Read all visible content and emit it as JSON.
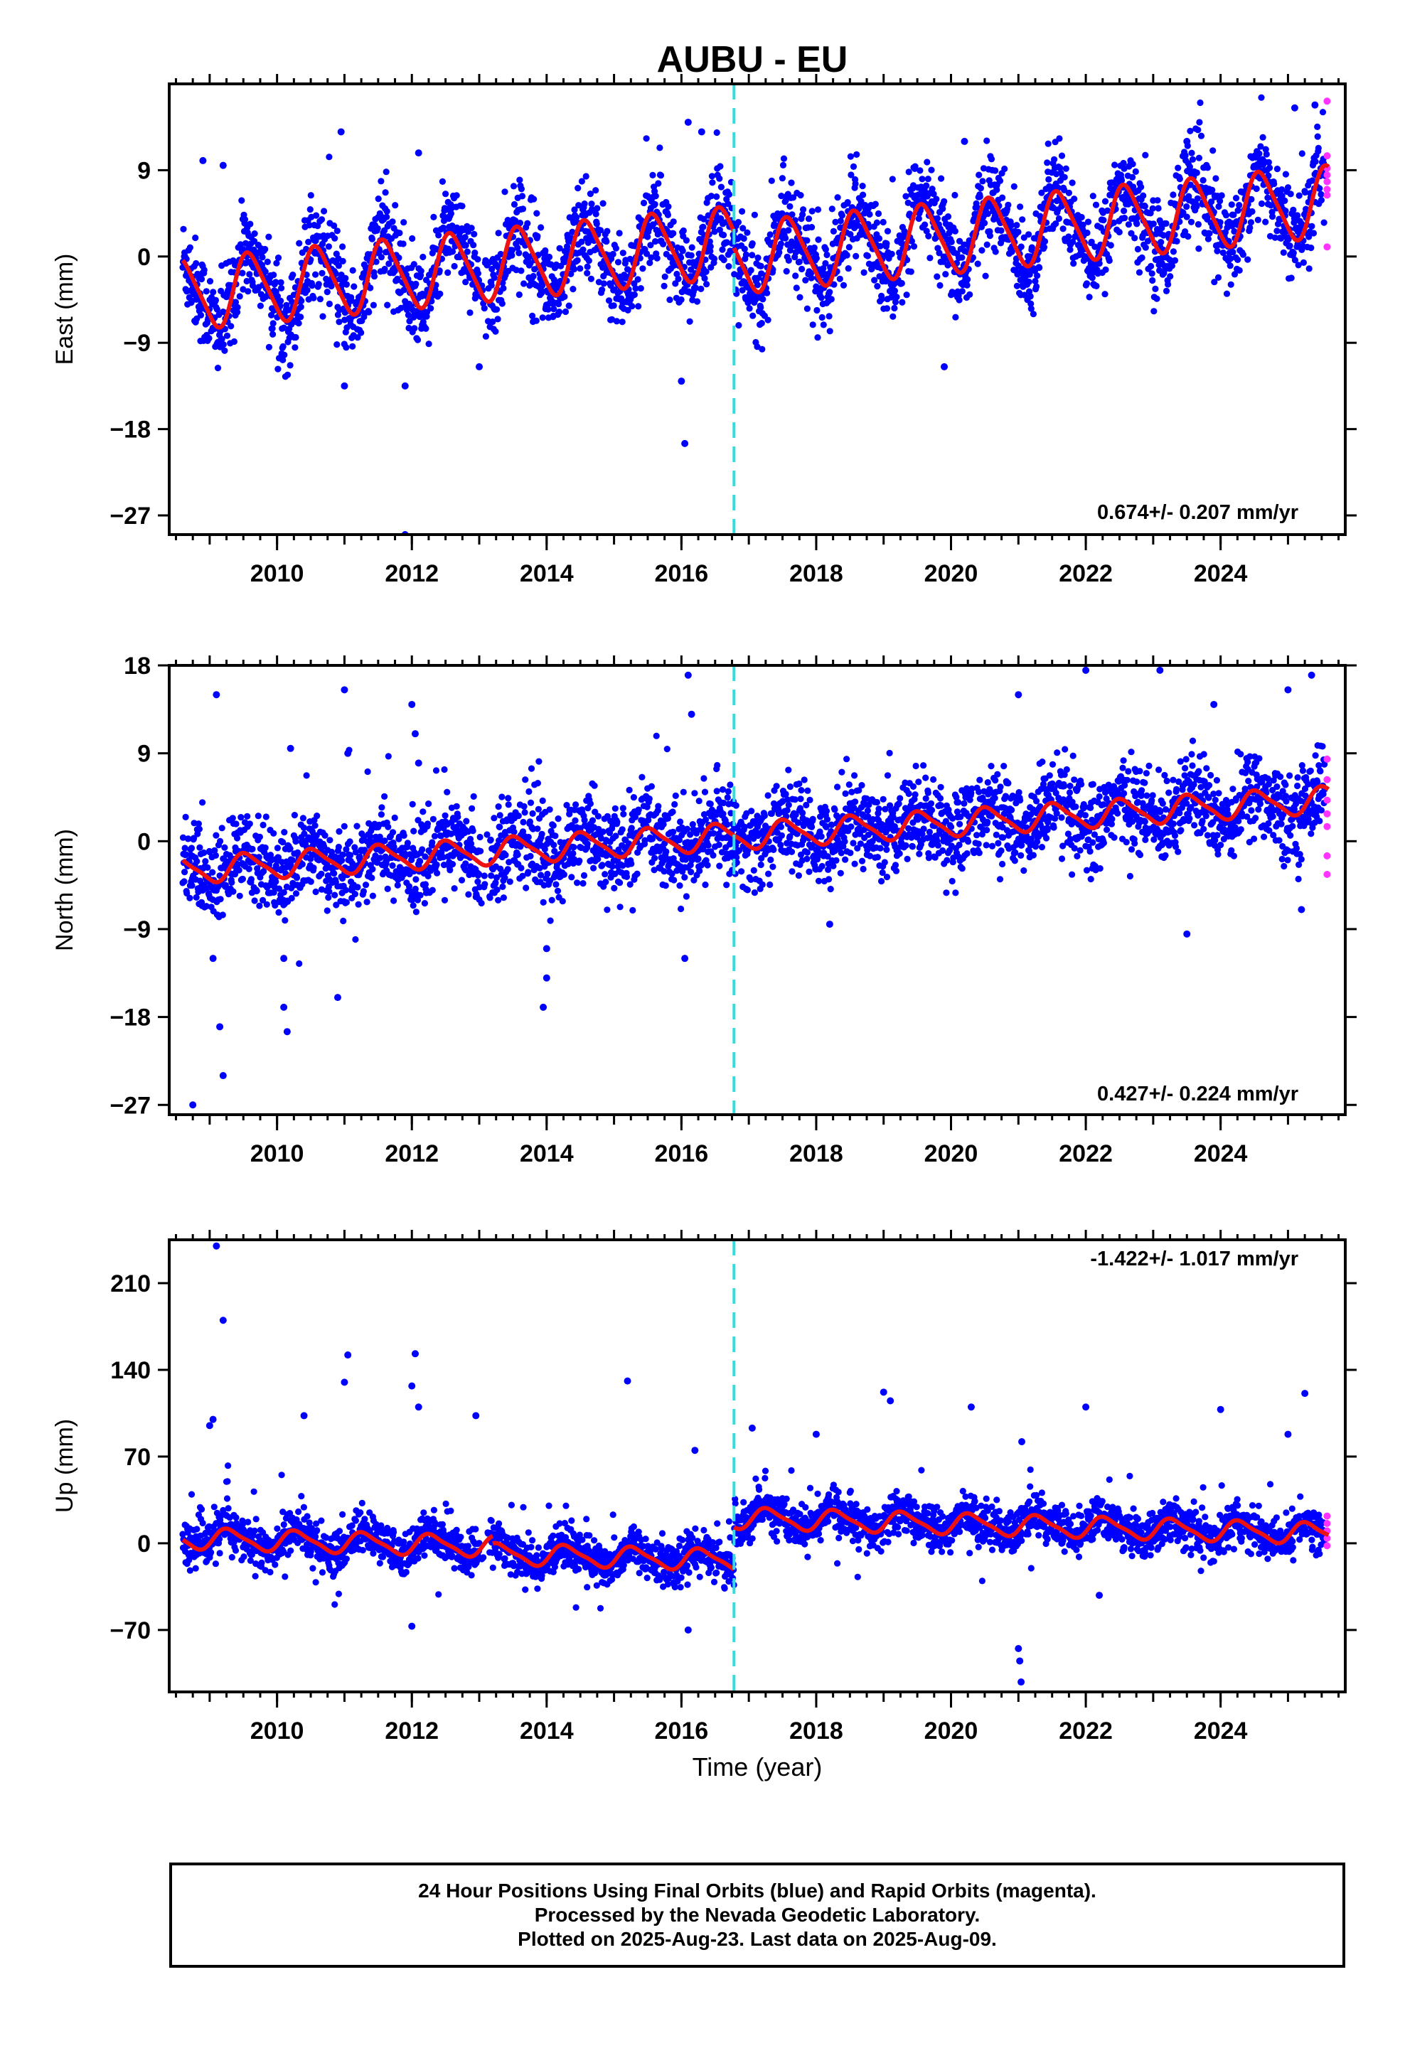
{
  "title": "AUBU - EU",
  "colors": {
    "final_points": "#0000ff",
    "rapid_points": "#ff33ff",
    "model_line": "#ee1111",
    "event_line": "#33dddd",
    "axes": "#000000"
  },
  "chart_data": [
    {
      "type": "scatter",
      "name": "east",
      "ylabel": "East (mm)",
      "ylim": [
        -29,
        18
      ],
      "yticks": [
        9,
        0,
        -9,
        -18,
        -27
      ],
      "ytick_labels": [
        "9",
        "0",
        "−9",
        "−18",
        "−27"
      ],
      "xlim": [
        2008.4,
        2025.85
      ],
      "xticks": [
        2010,
        2012,
        2014,
        2016,
        2018,
        2020,
        2022,
        2024
      ],
      "xtick_labels": [
        "2010",
        "2012",
        "2014",
        "2016",
        "2018",
        "2020",
        "2022",
        "2024"
      ],
      "rate": "0.674+/- 0.207 mm/yr",
      "event_x": 2016.78,
      "model": {
        "segments": [
          {
            "start": 2008.6,
            "end": 2016.78,
            "offset": -4.0,
            "slope": 0.674
          },
          {
            "start": 2016.78,
            "end": 2025.6,
            "offset": -5.7,
            "slope": 0.674
          }
        ],
        "annual_amp": 3.6,
        "semiannual_amp": 0.6,
        "phase": 0.35
      },
      "scatter": {
        "noise": 2.4,
        "outlier_rate": 0.01,
        "outlier_spread": 9
      },
      "outliers": [
        {
          "x": 2008.9,
          "y": 10
        },
        {
          "x": 2009.2,
          "y": 9.5
        },
        {
          "x": 2010.95,
          "y": 13
        },
        {
          "x": 2011.0,
          "y": -13.5
        },
        {
          "x": 2011.9,
          "y": -13.5
        },
        {
          "x": 2012.1,
          "y": 10.8
        },
        {
          "x": 2011.9,
          "y": -29
        },
        {
          "x": 2013.0,
          "y": -11.5
        },
        {
          "x": 2016.0,
          "y": -13
        },
        {
          "x": 2016.05,
          "y": -19.5
        },
        {
          "x": 2016.1,
          "y": 14
        },
        {
          "x": 2016.3,
          "y": 13
        },
        {
          "x": 2020.2,
          "y": 12
        },
        {
          "x": 2019.9,
          "y": -11.5
        },
        {
          "x": 2023.5,
          "y": 12
        },
        {
          "x": 2025.1,
          "y": 15.5
        },
        {
          "x": 2025.4,
          "y": 15.8
        }
      ],
      "rapid": [
        {
          "x": 2025.58,
          "y": 16.2
        },
        {
          "x": 2025.58,
          "y": 10.5
        },
        {
          "x": 2025.58,
          "y": 9.2
        },
        {
          "x": 2025.58,
          "y": 8.5
        },
        {
          "x": 2025.58,
          "y": 7.8
        },
        {
          "x": 2025.58,
          "y": 7.0
        },
        {
          "x": 2025.58,
          "y": 6.4
        },
        {
          "x": 2025.58,
          "y": 1.0
        }
      ]
    },
    {
      "type": "scatter",
      "name": "north",
      "ylabel": "North (mm)",
      "ylim": [
        -28,
        18
      ],
      "yticks": [
        18,
        9,
        0,
        -9,
        -18,
        -27
      ],
      "ytick_labels": [
        "18",
        "9",
        "0",
        "−9",
        "−18",
        "−27"
      ],
      "xlim": [
        2008.4,
        2025.85
      ],
      "xticks": [
        2010,
        2012,
        2014,
        2016,
        2018,
        2020,
        2022,
        2024
      ],
      "xtick_labels": [
        "2010",
        "2012",
        "2014",
        "2016",
        "2018",
        "2020",
        "2022",
        "2024"
      ],
      "rate": "0.427+/- 0.224 mm/yr",
      "event_x": 2016.78,
      "model": {
        "segments": [
          {
            "start": 2008.6,
            "end": 2016.78,
            "offset": -3.0,
            "slope": 0.427
          },
          {
            "start": 2016.78,
            "end": 2025.6,
            "offset": -3.0,
            "slope": 0.427
          }
        ],
        "annual_amp": 1.3,
        "semiannual_amp": 0.3,
        "phase": 0.3
      },
      "scatter": {
        "noise": 2.2,
        "outlier_rate": 0.012,
        "outlier_spread": 10
      },
      "outliers": [
        {
          "x": 2008.75,
          "y": -27
        },
        {
          "x": 2009.1,
          "y": 15
        },
        {
          "x": 2009.15,
          "y": -19
        },
        {
          "x": 2009.2,
          "y": -24
        },
        {
          "x": 2009.05,
          "y": -12
        },
        {
          "x": 2010.1,
          "y": -17
        },
        {
          "x": 2010.15,
          "y": -19.5
        },
        {
          "x": 2010.1,
          "y": -12
        },
        {
          "x": 2010.2,
          "y": 9.5
        },
        {
          "x": 2010.9,
          "y": -16
        },
        {
          "x": 2011.0,
          "y": 15.5
        },
        {
          "x": 2011.05,
          "y": 9
        },
        {
          "x": 2012.0,
          "y": 14
        },
        {
          "x": 2012.05,
          "y": 11
        },
        {
          "x": 2012.1,
          "y": 8
        },
        {
          "x": 2013.95,
          "y": -17
        },
        {
          "x": 2014.0,
          "y": -14
        },
        {
          "x": 2014.0,
          "y": -11
        },
        {
          "x": 2016.05,
          "y": -12
        },
        {
          "x": 2016.1,
          "y": 17
        },
        {
          "x": 2016.15,
          "y": 13
        },
        {
          "x": 2018.2,
          "y": -8.5
        },
        {
          "x": 2021.0,
          "y": 15
        },
        {
          "x": 2022.0,
          "y": 17.5
        },
        {
          "x": 2023.1,
          "y": 17.5
        },
        {
          "x": 2023.5,
          "y": -9.5
        },
        {
          "x": 2023.9,
          "y": 14
        },
        {
          "x": 2025.0,
          "y": 15.5
        },
        {
          "x": 2025.35,
          "y": 17
        },
        {
          "x": 2025.2,
          "y": -7
        }
      ],
      "rapid": [
        {
          "x": 2025.58,
          "y": 8.4
        },
        {
          "x": 2025.58,
          "y": 6.3
        },
        {
          "x": 2025.58,
          "y": 4.2
        },
        {
          "x": 2025.58,
          "y": 2.8
        },
        {
          "x": 2025.58,
          "y": 1.5
        },
        {
          "x": 2025.58,
          "y": -1.5
        },
        {
          "x": 2025.58,
          "y": -3.4
        }
      ]
    },
    {
      "type": "scatter",
      "name": "up",
      "ylabel": "Up (mm)",
      "xlabel": "Time (year)",
      "ylim": [
        -120,
        245
      ],
      "yticks": [
        210,
        140,
        70,
        0,
        -70
      ],
      "ytick_labels": [
        "210",
        "140",
        "70",
        "0",
        "−70"
      ],
      "xlim": [
        2008.4,
        2025.85
      ],
      "xticks": [
        2010,
        2012,
        2014,
        2016,
        2018,
        2020,
        2022,
        2024
      ],
      "xtick_labels": [
        "2010",
        "2012",
        "2014",
        "2016",
        "2018",
        "2020",
        "2022",
        "2024"
      ],
      "rate": "-1.422+/- 1.017 mm/yr",
      "event_x": 2016.78,
      "model": {
        "segments": [
          {
            "start": 2008.6,
            "end": 2013.2,
            "offset": 4.0,
            "slope": -1.422
          },
          {
            "start": 2013.2,
            "end": 2016.78,
            "offset": -2.0,
            "slope": -1.422
          },
          {
            "start": 2016.78,
            "end": 2025.6,
            "offset": 32.0,
            "slope": -1.422
          }
        ],
        "annual_amp": 8.0,
        "semiannual_amp": 2.0,
        "phase": 0.05
      },
      "scatter": {
        "noise": 8.5,
        "outlier_rate": 0.03,
        "outlier_spread": 45
      },
      "outliers": [
        {
          "x": 2009.1,
          "y": 240
        },
        {
          "x": 2009.2,
          "y": 180
        },
        {
          "x": 2009.05,
          "y": 100
        },
        {
          "x": 2009.0,
          "y": 95
        },
        {
          "x": 2010.4,
          "y": 103
        },
        {
          "x": 2011.05,
          "y": 152
        },
        {
          "x": 2011.0,
          "y": 130
        },
        {
          "x": 2012.0,
          "y": 127
        },
        {
          "x": 2012.05,
          "y": 153
        },
        {
          "x": 2012.1,
          "y": 110
        },
        {
          "x": 2012.0,
          "y": -67
        },
        {
          "x": 2012.95,
          "y": 103
        },
        {
          "x": 2015.2,
          "y": 131
        },
        {
          "x": 2016.1,
          "y": -70
        },
        {
          "x": 2016.2,
          "y": 75
        },
        {
          "x": 2017.05,
          "y": 93
        },
        {
          "x": 2018.0,
          "y": 88
        },
        {
          "x": 2019.0,
          "y": 122
        },
        {
          "x": 2019.1,
          "y": 115
        },
        {
          "x": 2020.3,
          "y": 110
        },
        {
          "x": 2021.0,
          "y": -85
        },
        {
          "x": 2021.02,
          "y": -95
        },
        {
          "x": 2021.04,
          "y": -112
        },
        {
          "x": 2021.05,
          "y": 82
        },
        {
          "x": 2022.0,
          "y": 110
        },
        {
          "x": 2022.2,
          "y": -42
        },
        {
          "x": 2024.0,
          "y": 108
        },
        {
          "x": 2025.0,
          "y": 88
        },
        {
          "x": 2025.25,
          "y": 121
        }
      ],
      "rapid": [
        {
          "x": 2025.58,
          "y": 22
        },
        {
          "x": 2025.58,
          "y": 16
        },
        {
          "x": 2025.58,
          "y": 10
        },
        {
          "x": 2025.58,
          "y": 4
        },
        {
          "x": 2025.58,
          "y": -2
        }
      ]
    }
  ],
  "footer": {
    "line1": "24 Hour Positions Using Final Orbits (blue) and Rapid Orbits (magenta).",
    "line2": "Processed by the Nevada Geodetic Laboratory.",
    "line3": "Plotted on 2025-Aug-23. Last data on 2025-Aug-09."
  }
}
